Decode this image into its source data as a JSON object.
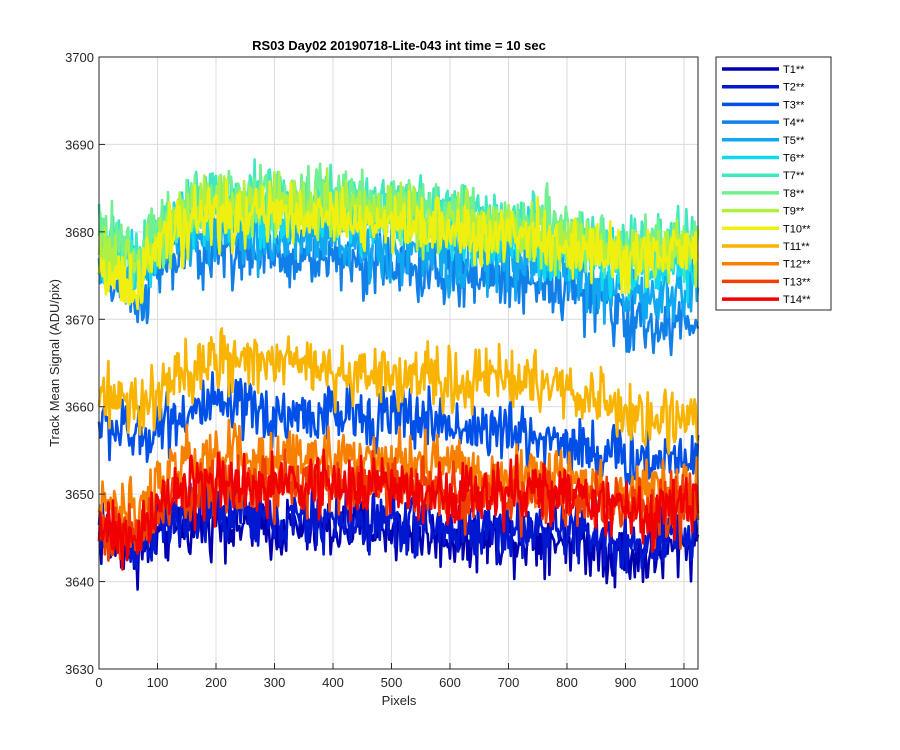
{
  "chart_data": {
    "type": "line",
    "title": "RS03 Day02 20190718-Lite-043 int time = 10 sec",
    "xlabel": "Pixels",
    "ylabel": "Track Mean Signal (ADU/pix)",
    "xlim": [
      0,
      1024
    ],
    "ylim": [
      3630,
      3700
    ],
    "xticks": [
      0,
      100,
      200,
      300,
      400,
      500,
      600,
      700,
      800,
      900,
      1000
    ],
    "yticks": [
      3630,
      3640,
      3650,
      3660,
      3670,
      3680,
      3690,
      3700
    ],
    "grid": true,
    "legend_position": "outside-top-right",
    "series_profile_x": [
      0,
      50,
      70,
      100,
      130,
      200,
      300,
      400,
      500,
      600,
      700,
      800,
      850,
      900,
      950,
      1024
    ],
    "series": [
      {
        "name": "T1**",
        "color": "#0000b0",
        "profile": [
          3645,
          3644,
          3643,
          3645,
          3646,
          3647,
          3646,
          3646,
          3646,
          3645,
          3645,
          3645,
          3644,
          3643,
          3643,
          3645
        ]
      },
      {
        "name": "T2**",
        "color": "#0018d0",
        "profile": [
          3646,
          3645,
          3644,
          3646,
          3647,
          3648,
          3647,
          3647,
          3647,
          3646,
          3646,
          3646,
          3645,
          3644,
          3644,
          3646
        ]
      },
      {
        "name": "T3**",
        "color": "#0050e8",
        "profile": [
          3658,
          3657,
          3656,
          3658,
          3659,
          3660,
          3659,
          3659,
          3659,
          3658,
          3657,
          3656,
          3655,
          3654,
          3654,
          3655
        ]
      },
      {
        "name": "T4**",
        "color": "#1080e8",
        "profile": [
          3675,
          3673,
          3672,
          3675,
          3677,
          3678,
          3677,
          3677,
          3676,
          3675,
          3675,
          3674,
          3672,
          3670,
          3669,
          3670
        ]
      },
      {
        "name": "T5**",
        "color": "#10a8f0",
        "profile": [
          3677,
          3675,
          3674,
          3677,
          3679,
          3680,
          3679,
          3679,
          3678,
          3677,
          3677,
          3676,
          3674,
          3673,
          3672,
          3674
        ]
      },
      {
        "name": "T6**",
        "color": "#10d8f0",
        "profile": [
          3679,
          3677,
          3676,
          3679,
          3681,
          3682,
          3682,
          3682,
          3681,
          3680,
          3679,
          3678,
          3677,
          3676,
          3676,
          3677
        ]
      },
      {
        "name": "T7**",
        "color": "#40e8c0",
        "profile": [
          3680,
          3678,
          3677,
          3680,
          3682,
          3684,
          3684,
          3684,
          3683,
          3682,
          3681,
          3680,
          3679,
          3678,
          3678,
          3679
        ]
      },
      {
        "name": "T8**",
        "color": "#70f090",
        "profile": [
          3680,
          3678,
          3677,
          3680,
          3682,
          3684,
          3684,
          3684,
          3683,
          3682,
          3681,
          3680,
          3679,
          3678,
          3678,
          3679
        ]
      },
      {
        "name": "T9**",
        "color": "#b0f040",
        "profile": [
          3678,
          3676,
          3675,
          3679,
          3681,
          3683,
          3683,
          3683,
          3682,
          3681,
          3680,
          3679,
          3678,
          3677,
          3677,
          3678
        ]
      },
      {
        "name": "T10**",
        "color": "#f0f010",
        "profile": [
          3676,
          3674,
          3674,
          3678,
          3680,
          3682,
          3682,
          3681,
          3681,
          3680,
          3680,
          3679,
          3678,
          3677,
          3677,
          3678
        ]
      },
      {
        "name": "T11**",
        "color": "#f8b400",
        "profile": [
          3661,
          3660,
          3660,
          3662,
          3663,
          3665,
          3665,
          3664,
          3664,
          3663,
          3663,
          3662,
          3661,
          3659,
          3659,
          3659
        ]
      },
      {
        "name": "T12**",
        "color": "#f88000",
        "profile": [
          3649,
          3648,
          3648,
          3651,
          3653,
          3654,
          3654,
          3654,
          3654,
          3653,
          3652,
          3652,
          3651,
          3650,
          3650,
          3651
        ]
      },
      {
        "name": "T13**",
        "color": "#f04000",
        "profile": [
          3646,
          3645,
          3645,
          3648,
          3650,
          3651,
          3651,
          3651,
          3651,
          3650,
          3650,
          3649,
          3649,
          3648,
          3648,
          3649
        ]
      },
      {
        "name": "T14**",
        "color": "#f00000",
        "profile": [
          3646,
          3645,
          3645,
          3648,
          3650,
          3651,
          3651,
          3651,
          3651,
          3650,
          3650,
          3650,
          3649,
          3648,
          3648,
          3649
        ]
      }
    ],
    "noise_amplitude": 2.2
  }
}
